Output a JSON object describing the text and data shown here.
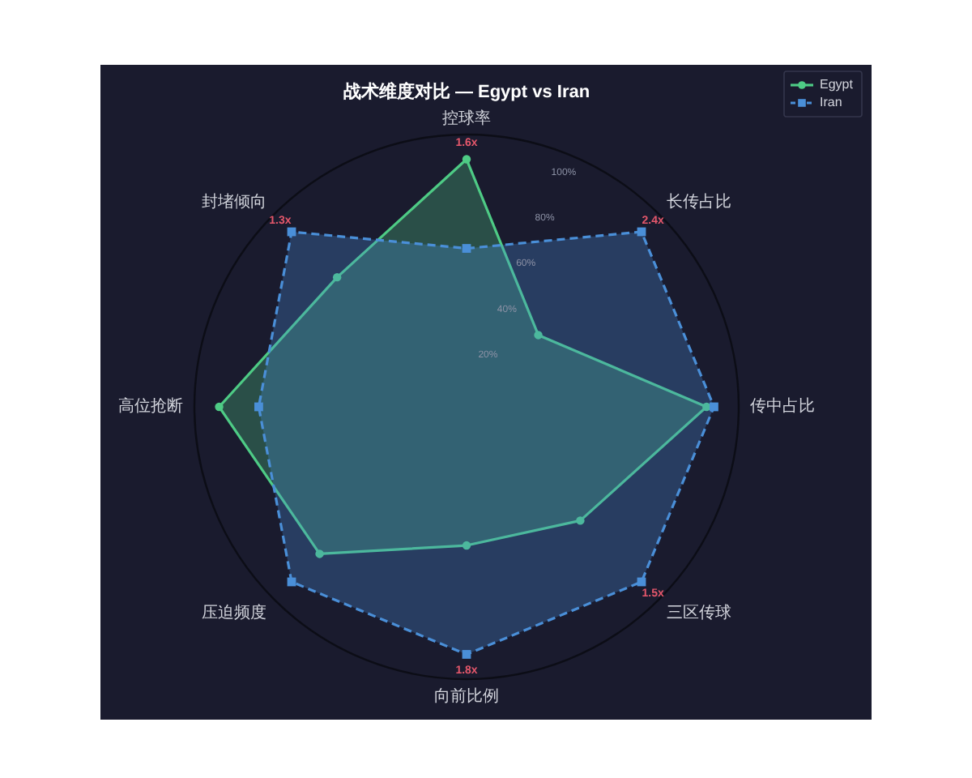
{
  "chart_data": {
    "type": "radar",
    "title": "战术维度对比 — Egypt vs Iran",
    "categories": [
      "控球率",
      "长传占比",
      "传中占比",
      "三区传球",
      "向前比例",
      "压迫频度",
      "高位抢断",
      "封堵倾向"
    ],
    "series": [
      {
        "name": "Egypt",
        "color": "#4ecb85",
        "marker": "circle",
        "line_style": "solid",
        "values": [
          100,
          41,
          97,
          65,
          56,
          84,
          100,
          74
        ]
      },
      {
        "name": "Iran",
        "color": "#4a8fd8",
        "marker": "square",
        "line_style": "dashed",
        "values": [
          64,
          100,
          100,
          100,
          100,
          100,
          84,
          100
        ]
      }
    ],
    "ylim": [
      0,
      110
    ],
    "yticks": [
      {
        "value": 20,
        "label": "20%"
      },
      {
        "value": 40,
        "label": "40%"
      },
      {
        "value": 60,
        "label": "60%"
      },
      {
        "value": 80,
        "label": "80%"
      },
      {
        "value": 100,
        "label": "100%"
      }
    ],
    "legend": "top right",
    "annotations": [
      {
        "text": "1.6x",
        "x": "控球率"
      },
      {
        "text": "2.4x",
        "x": "长传占比"
      },
      {
        "text": "1.5x",
        "x": "三区传球"
      },
      {
        "text": "1.8x",
        "x": "向前比例"
      },
      {
        "text": "1.3x",
        "x": "封堵倾向"
      }
    ]
  }
}
